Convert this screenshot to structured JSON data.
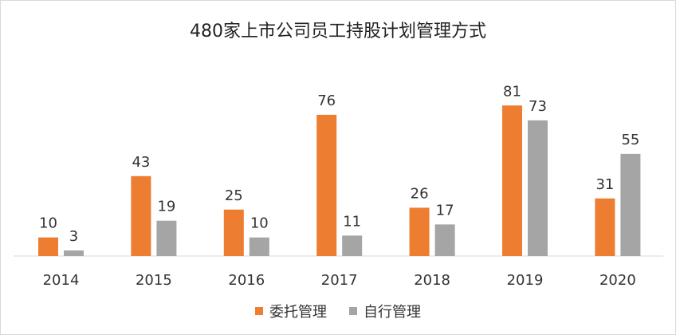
{
  "chart_data": {
    "type": "bar",
    "title": "480家上市公司员工持股计划管理方式",
    "categories": [
      "2014",
      "2015",
      "2016",
      "2017",
      "2018",
      "2019",
      "2020"
    ],
    "series": [
      {
        "name": "委托管理",
        "color": "#ed7d31",
        "values": [
          10,
          43,
          25,
          76,
          26,
          81,
          31
        ]
      },
      {
        "name": "自行管理",
        "color": "#a5a5a5",
        "values": [
          3,
          19,
          10,
          11,
          17,
          73,
          55
        ]
      }
    ],
    "ylim": [
      0,
      100
    ],
    "grid": false,
    "legend": "bottom",
    "data_labels": true
  }
}
